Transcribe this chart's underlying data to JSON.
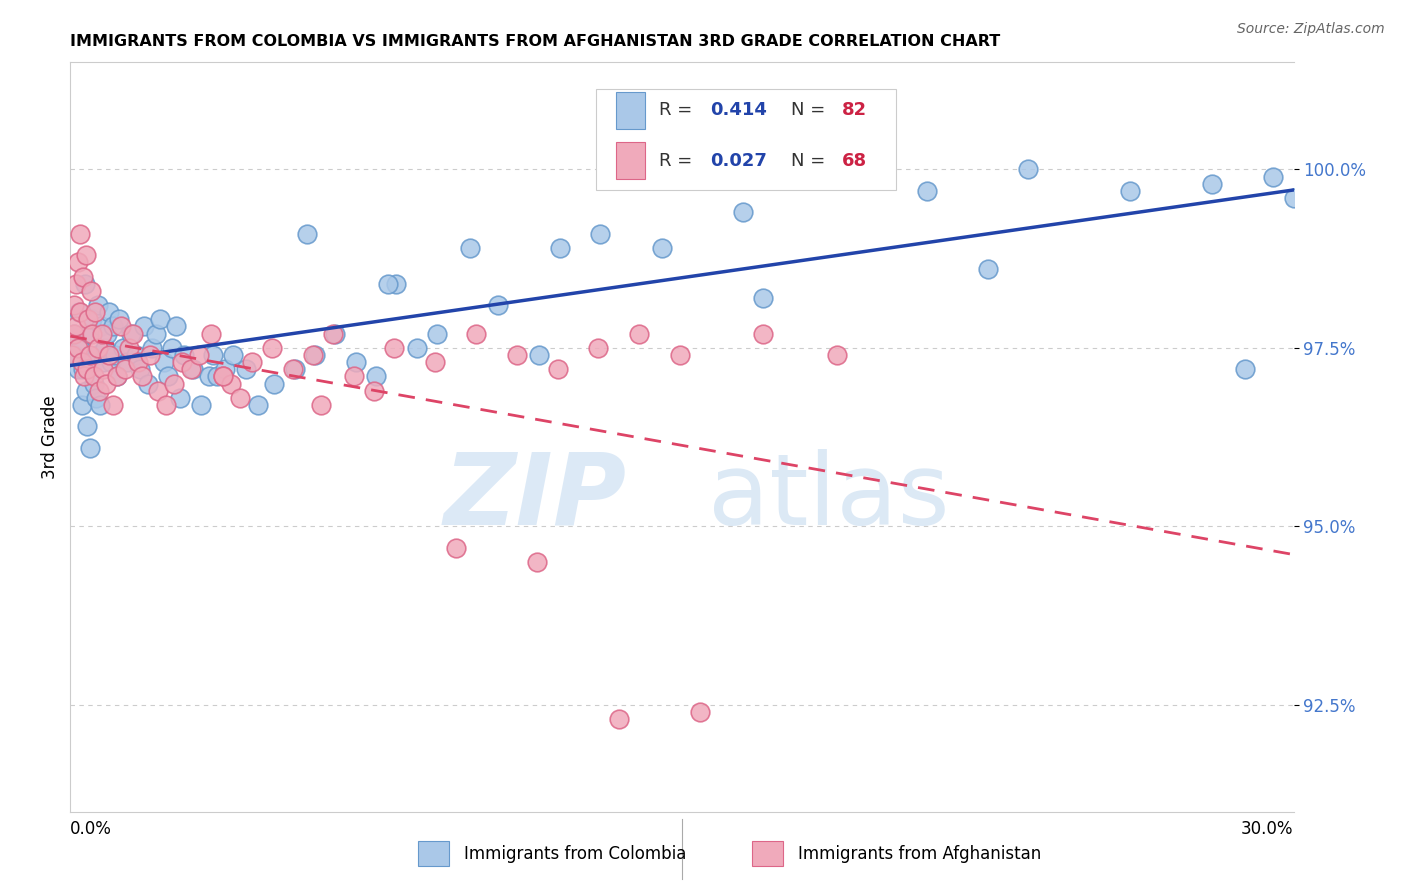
{
  "title": "IMMIGRANTS FROM COLOMBIA VS IMMIGRANTS FROM AFGHANISTAN 3RD GRADE CORRELATION CHART",
  "source": "Source: ZipAtlas.com",
  "ylabel": "3rd Grade",
  "yticks": [
    92.5,
    95.0,
    97.5,
    100.0
  ],
  "ytick_labels": [
    "92.5%",
    "95.0%",
    "97.5%",
    "100.0%"
  ],
  "xmin": 0.0,
  "xmax": 30.0,
  "ymin": 91.0,
  "ymax": 101.5,
  "colombia_color": "#aac8e8",
  "colombia_edge": "#6699cc",
  "afghanistan_color": "#f0aabb",
  "afghanistan_edge": "#dd6688",
  "trend_colombia_color": "#2244aa",
  "trend_afghanistan_color": "#dd4466",
  "watermark_zip": "ZIP",
  "watermark_atlas": "atlas",
  "colombia_x": [
    0.08,
    0.12,
    0.18,
    0.22,
    0.25,
    0.28,
    0.32,
    0.35,
    0.38,
    0.42,
    0.45,
    0.48,
    0.52,
    0.55,
    0.58,
    0.62,
    0.65,
    0.68,
    0.72,
    0.75,
    0.8,
    0.85,
    0.9,
    0.95,
    1.0,
    1.05,
    1.1,
    1.15,
    1.2,
    1.3,
    1.4,
    1.5,
    1.6,
    1.7,
    1.8,
    1.9,
    2.0,
    2.1,
    2.2,
    2.3,
    2.4,
    2.5,
    2.6,
    2.7,
    2.8,
    3.0,
    3.2,
    3.4,
    3.6,
    3.8,
    4.0,
    4.3,
    4.6,
    5.0,
    5.5,
    6.0,
    6.5,
    7.0,
    7.5,
    8.0,
    8.5,
    9.0,
    9.8,
    10.5,
    11.5,
    13.0,
    14.5,
    16.5,
    18.5,
    21.0,
    23.5,
    26.0,
    28.0,
    29.5,
    30.0,
    28.8,
    22.5,
    17.0,
    12.0,
    7.8,
    5.8,
    3.5
  ],
  "colombia_y": [
    97.7,
    97.4,
    97.2,
    98.0,
    97.5,
    96.7,
    97.2,
    98.4,
    96.9,
    96.4,
    97.7,
    96.1,
    97.9,
    97.3,
    97.0,
    96.8,
    97.4,
    98.1,
    96.7,
    97.8,
    97.3,
    97.5,
    97.7,
    98.0,
    97.3,
    97.8,
    97.4,
    97.1,
    97.9,
    97.5,
    97.3,
    97.7,
    97.4,
    97.2,
    97.8,
    97.0,
    97.5,
    97.7,
    97.9,
    97.3,
    97.1,
    97.5,
    97.8,
    96.8,
    97.4,
    97.2,
    96.7,
    97.1,
    97.1,
    97.2,
    97.4,
    97.2,
    96.7,
    97.0,
    97.2,
    97.4,
    97.7,
    97.3,
    97.1,
    98.4,
    97.5,
    97.7,
    98.9,
    98.1,
    97.4,
    99.1,
    98.9,
    99.4,
    99.9,
    99.7,
    100.0,
    99.7,
    99.8,
    99.9,
    99.6,
    97.2,
    98.6,
    98.2,
    98.9,
    98.4,
    99.1,
    97.4
  ],
  "afghanistan_x": [
    0.04,
    0.08,
    0.1,
    0.13,
    0.15,
    0.18,
    0.2,
    0.23,
    0.25,
    0.28,
    0.3,
    0.33,
    0.38,
    0.4,
    0.43,
    0.48,
    0.5,
    0.53,
    0.58,
    0.6,
    0.68,
    0.7,
    0.78,
    0.8,
    0.88,
    0.95,
    1.05,
    1.15,
    1.25,
    1.35,
    1.45,
    1.55,
    1.65,
    1.75,
    1.95,
    2.15,
    2.35,
    2.55,
    2.75,
    2.95,
    3.15,
    3.45,
    3.75,
    3.95,
    4.45,
    4.95,
    5.45,
    5.95,
    6.45,
    6.95,
    7.95,
    8.95,
    9.95,
    10.95,
    11.95,
    12.95,
    13.95,
    14.95,
    4.15,
    3.75,
    6.15,
    7.45,
    9.45,
    11.45,
    13.45,
    15.45,
    17.0,
    18.8
  ],
  "afghanistan_y": [
    97.4,
    97.7,
    98.1,
    98.4,
    97.8,
    98.7,
    97.5,
    99.1,
    98.0,
    97.3,
    98.5,
    97.1,
    98.8,
    97.2,
    97.9,
    97.4,
    98.3,
    97.7,
    97.1,
    98.0,
    97.5,
    96.9,
    97.7,
    97.2,
    97.0,
    97.4,
    96.7,
    97.1,
    97.8,
    97.2,
    97.5,
    97.7,
    97.3,
    97.1,
    97.4,
    96.9,
    96.7,
    97.0,
    97.3,
    97.2,
    97.4,
    97.7,
    97.1,
    97.0,
    97.3,
    97.5,
    97.2,
    97.4,
    97.7,
    97.1,
    97.5,
    97.3,
    97.7,
    97.4,
    97.2,
    97.5,
    97.7,
    97.4,
    96.8,
    97.1,
    96.7,
    96.9,
    94.7,
    94.5,
    92.3,
    92.4,
    97.7,
    97.4
  ]
}
